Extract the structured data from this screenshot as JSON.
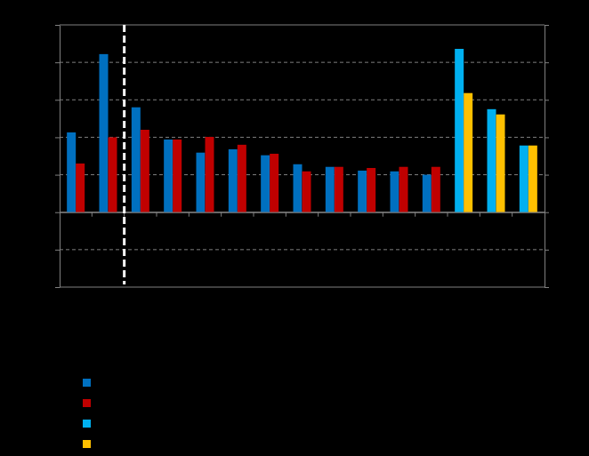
{
  "chart_data": {
    "type": "bar",
    "categories": [
      null,
      null,
      null,
      null,
      null,
      null,
      null,
      null,
      null,
      null,
      null,
      null,
      null,
      null,
      null
    ],
    "series": [
      {
        "color": "#0070C0",
        "values": [
          2.13,
          4.22,
          2.8,
          1.94,
          1.59,
          1.68,
          1.52,
          1.28,
          1.21,
          1.11,
          1.09,
          1.0,
          null,
          null,
          null
        ]
      },
      {
        "color": "#C00000",
        "values": [
          1.3,
          2.0,
          2.2,
          1.94,
          2.01,
          1.8,
          1.56,
          1.09,
          1.21,
          1.18,
          1.21,
          1.21,
          null,
          null,
          null
        ]
      },
      {
        "color": "#00B0F0",
        "values": [
          null,
          null,
          null,
          null,
          null,
          null,
          null,
          null,
          null,
          null,
          null,
          null,
          4.36,
          2.75,
          1.78
        ]
      },
      {
        "color": "#FFC000",
        "values": [
          null,
          null,
          null,
          null,
          null,
          null,
          null,
          null,
          null,
          null,
          null,
          null,
          3.18,
          2.61,
          1.78
        ]
      }
    ],
    "ylim": [
      -2,
      5
    ],
    "yticks": [
      -2,
      -1,
      0,
      1,
      2,
      3,
      4,
      5
    ],
    "grid": true,
    "legend": "bottom",
    "tick_labels": false
  }
}
